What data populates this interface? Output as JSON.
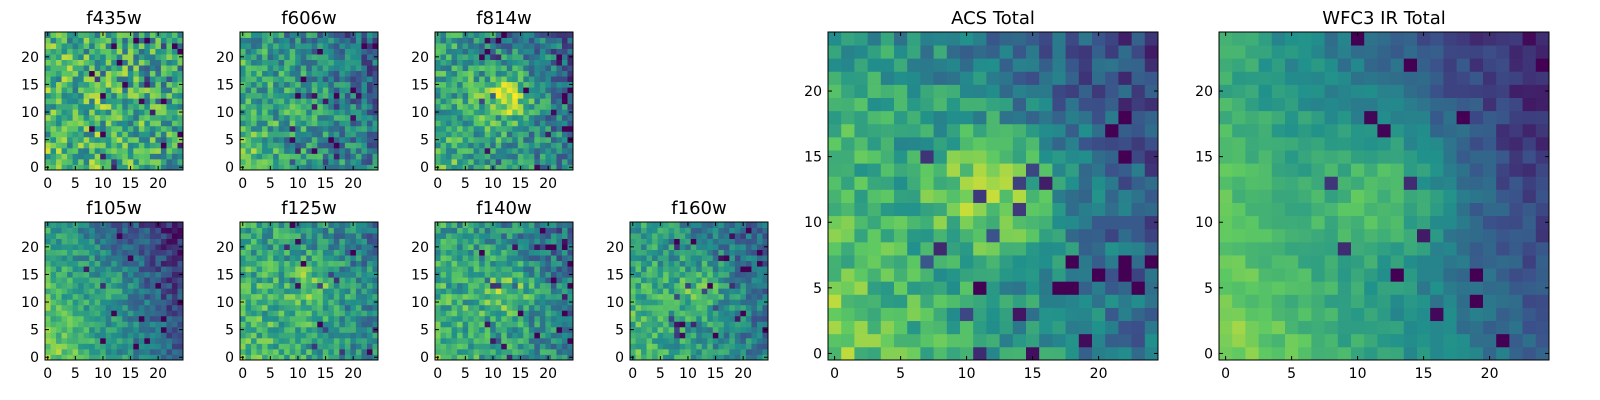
{
  "colormap": {
    "name": "viridis",
    "stops": [
      "#440154",
      "#3b528b",
      "#21918c",
      "#5ec962",
      "#fde725"
    ]
  },
  "chart_data": [
    {
      "type": "heatmap",
      "title": "f435w",
      "xlim": [
        0,
        24
      ],
      "ylim": [
        0,
        24
      ],
      "x_ticks": [
        "0",
        "5",
        "10",
        "15",
        "20"
      ],
      "y_ticks": [
        "0",
        "5",
        "10",
        "15",
        "20"
      ],
      "grid": false
    },
    {
      "type": "heatmap",
      "title": "f606w",
      "xlim": [
        0,
        24
      ],
      "ylim": [
        0,
        24
      ],
      "x_ticks": [
        "0",
        "5",
        "10",
        "15",
        "20"
      ],
      "y_ticks": [
        "0",
        "5",
        "10",
        "15",
        "20"
      ],
      "grid": false
    },
    {
      "type": "heatmap",
      "title": "f814w",
      "xlim": [
        0,
        24
      ],
      "ylim": [
        0,
        24
      ],
      "x_ticks": [
        "0",
        "5",
        "10",
        "15",
        "20"
      ],
      "y_ticks": [
        "0",
        "5",
        "10",
        "15",
        "20"
      ],
      "grid": false
    },
    {
      "type": "heatmap",
      "title": "f105w",
      "xlim": [
        0,
        24
      ],
      "ylim": [
        0,
        24
      ],
      "x_ticks": [
        "0",
        "5",
        "10",
        "15",
        "20"
      ],
      "y_ticks": [
        "0",
        "5",
        "10",
        "15",
        "20"
      ],
      "grid": false
    },
    {
      "type": "heatmap",
      "title": "f125w",
      "xlim": [
        0,
        24
      ],
      "ylim": [
        0,
        24
      ],
      "x_ticks": [
        "0",
        "5",
        "10",
        "15",
        "20"
      ],
      "y_ticks": [
        "0",
        "5",
        "10",
        "15",
        "20"
      ],
      "grid": false
    },
    {
      "type": "heatmap",
      "title": "f140w",
      "xlim": [
        0,
        24
      ],
      "ylim": [
        0,
        24
      ],
      "x_ticks": [
        "0",
        "5",
        "10",
        "15",
        "20"
      ],
      "y_ticks": [
        "0",
        "5",
        "10",
        "15",
        "20"
      ],
      "grid": false
    },
    {
      "type": "heatmap",
      "title": "f160w",
      "xlim": [
        0,
        24
      ],
      "ylim": [
        0,
        24
      ],
      "x_ticks": [
        "0",
        "5",
        "10",
        "15",
        "20"
      ],
      "y_ticks": [
        "0",
        "5",
        "10",
        "15",
        "20"
      ],
      "grid": false
    },
    {
      "type": "heatmap",
      "title": "ACS Total",
      "xlim": [
        0,
        24
      ],
      "ylim": [
        0,
        24
      ],
      "x_ticks": [
        "0",
        "5",
        "10",
        "15",
        "20"
      ],
      "y_ticks": [
        "0",
        "5",
        "10",
        "15",
        "20"
      ],
      "grid": false
    },
    {
      "type": "heatmap",
      "title": "WFC3 IR Total",
      "xlim": [
        0,
        24
      ],
      "ylim": [
        0,
        24
      ],
      "x_ticks": [
        "0",
        "5",
        "10",
        "15",
        "20"
      ],
      "y_ticks": [
        "0",
        "5",
        "10",
        "15",
        "20"
      ],
      "grid": false
    }
  ]
}
